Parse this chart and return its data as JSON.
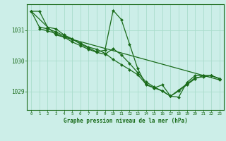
{
  "title": "Graphe pression niveau de la mer (hPa)",
  "xlabel_ticks": [
    0,
    1,
    2,
    3,
    4,
    5,
    6,
    7,
    8,
    9,
    10,
    11,
    12,
    13,
    14,
    15,
    16,
    17,
    18,
    19,
    20,
    21,
    22,
    23
  ],
  "xlim": [
    -0.5,
    23.5
  ],
  "ylim": [
    1028.4,
    1031.85
  ],
  "yticks": [
    1029,
    1030,
    1031
  ],
  "background_color": "#cceee8",
  "grid_color": "#aaddcc",
  "line_color": "#1a6b1a",
  "marker_color": "#1a6b1a",
  "series": [
    {
      "x": [
        0,
        1,
        2,
        3,
        4,
        5,
        6,
        7,
        8,
        9,
        10,
        11,
        12,
        13,
        14,
        15,
        16,
        17,
        18,
        19,
        20,
        21,
        22,
        23
      ],
      "y": [
        1031.62,
        1031.62,
        1031.1,
        1031.05,
        1030.85,
        1030.72,
        1030.55,
        1030.42,
        1030.3,
        1030.35,
        1031.65,
        1031.35,
        1030.55,
        1029.75,
        1029.22,
        1029.12,
        1029.22,
        1028.85,
        1028.82,
        1029.3,
        1029.52,
        1029.52,
        1029.52,
        1029.42
      ]
    },
    {
      "x": [
        0,
        1,
        2,
        3,
        4,
        5,
        6,
        7,
        8,
        9,
        10,
        11,
        12,
        13,
        14,
        15,
        16,
        17,
        18,
        19,
        20,
        21,
        22,
        23
      ],
      "y": [
        1031.62,
        1031.1,
        1031.05,
        1030.95,
        1030.82,
        1030.7,
        1030.58,
        1030.45,
        1030.38,
        1030.25,
        1030.05,
        1029.88,
        1029.72,
        1029.55,
        1029.25,
        1029.12,
        1029.02,
        1028.85,
        1029.05,
        1029.25,
        1029.45,
        1029.48,
        1029.52,
        1029.42
      ]
    },
    {
      "x": [
        1,
        2,
        3,
        4,
        5,
        6,
        7,
        8,
        9,
        10,
        11,
        12,
        13,
        14,
        15,
        16,
        17,
        18,
        19,
        20,
        21,
        22,
        23
      ],
      "y": [
        1031.05,
        1030.98,
        1030.9,
        1030.78,
        1030.62,
        1030.5,
        1030.38,
        1030.28,
        1030.22,
        1030.4,
        1030.2,
        1029.92,
        1029.62,
        1029.32,
        1029.15,
        1029.02,
        1028.85,
        1029.02,
        1029.22,
        1029.42,
        1029.52,
        1029.52,
        1029.42
      ]
    },
    {
      "x": [
        0,
        3,
        23
      ],
      "y": [
        1031.62,
        1030.85,
        1029.38
      ]
    }
  ]
}
